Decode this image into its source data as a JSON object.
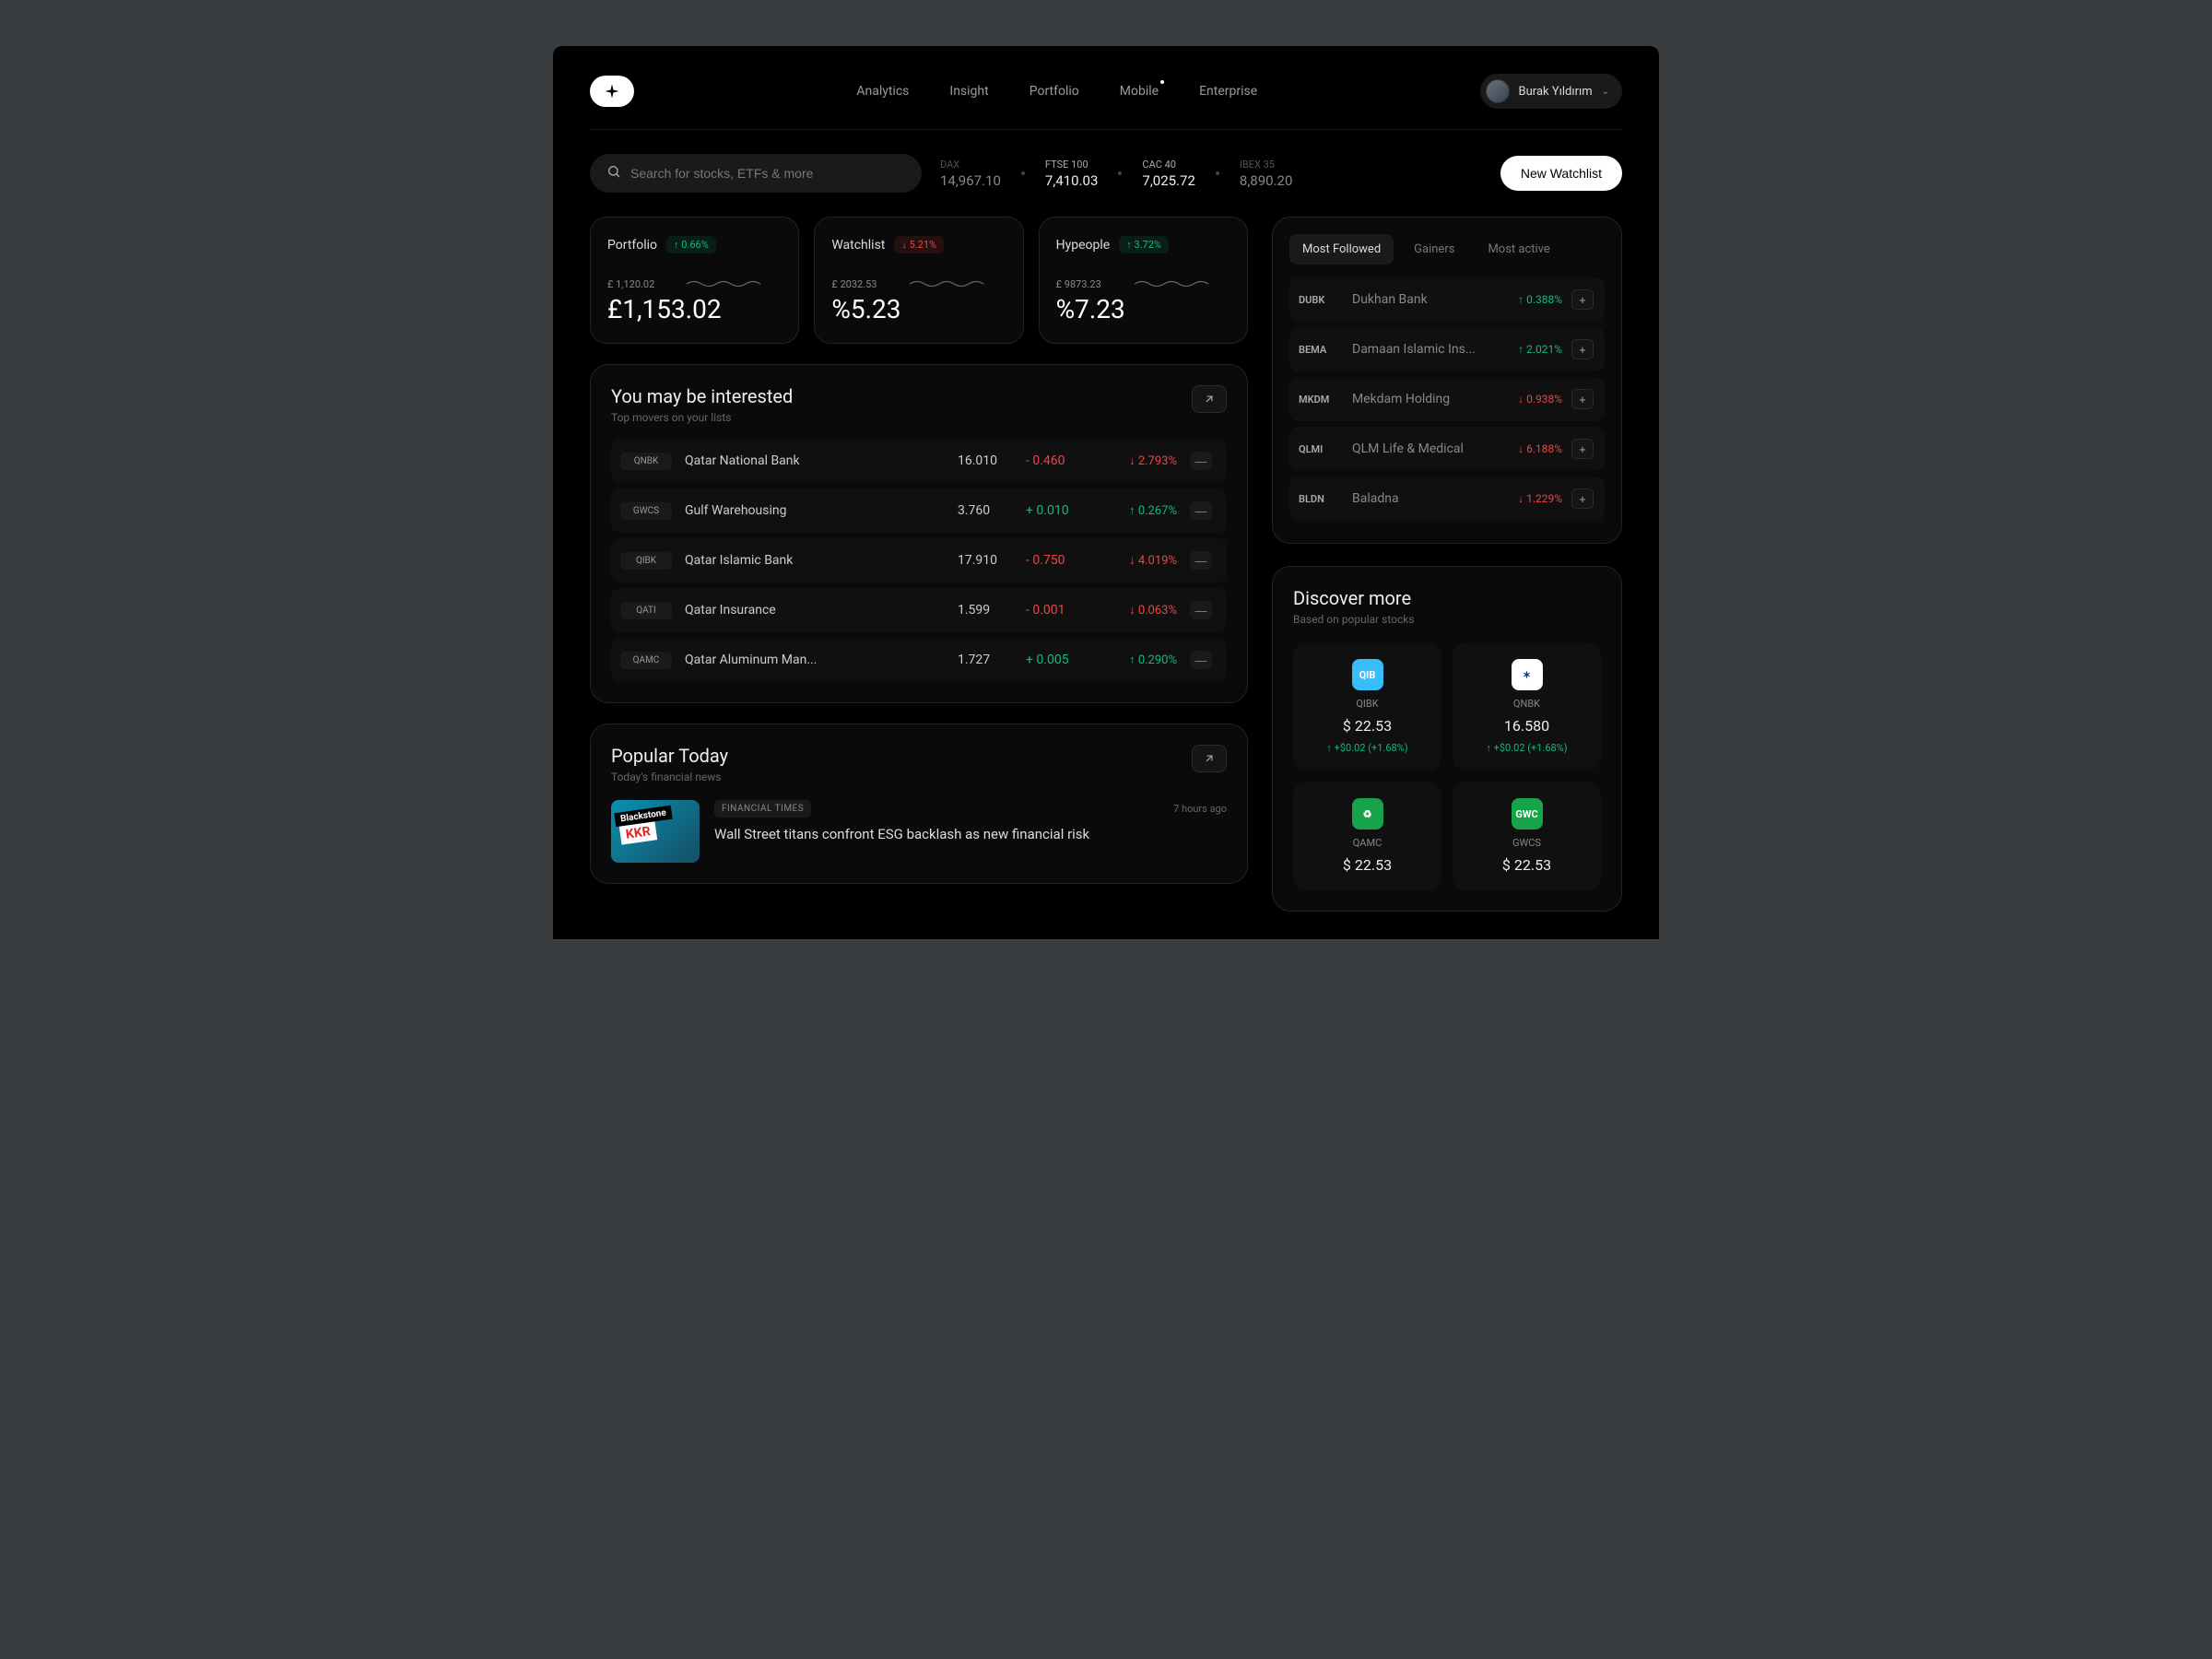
{
  "nav": {
    "items": [
      "Analytics",
      "Insight",
      "Portfolio",
      "Mobile",
      "Enterprise"
    ],
    "dot_index": 3
  },
  "user": {
    "name": "Burak Yıldırım"
  },
  "search": {
    "placeholder": "Search for stocks, ETFs & more"
  },
  "indices": [
    {
      "label": "DAX",
      "value": "14,967.10",
      "active": false
    },
    {
      "label": "FTSE 100",
      "value": "7,410.03",
      "active": true
    },
    {
      "label": "CAC 40",
      "value": "7,025.72",
      "active": true
    },
    {
      "label": "IBEX 35",
      "value": "8,890.20",
      "active": false
    }
  ],
  "new_watchlist_label": "New Watchlist",
  "stat_cards": [
    {
      "title": "Portfolio",
      "badge": "0.66%",
      "direction": "up",
      "small": "£ 1,120.02",
      "big": "£1,153.02"
    },
    {
      "title": "Watchlist",
      "badge": "5.21%",
      "direction": "down",
      "small": "£ 2032.53",
      "big": "%5.23"
    },
    {
      "title": "Hypeople",
      "badge": "3.72%",
      "direction": "up",
      "small": "£ 9873.23",
      "big": "%7.23"
    }
  ],
  "interested": {
    "title": "You may be interested",
    "subtitle": "Top movers on your lists",
    "rows": [
      {
        "ticker": "QNBK",
        "name": "Qatar National Bank",
        "price": "16.010",
        "delta": "- 0.460",
        "pct": "2.793%",
        "direction": "down"
      },
      {
        "ticker": "GWCS",
        "name": "Gulf Warehousing",
        "price": "3.760",
        "delta": "+ 0.010",
        "pct": "0.267%",
        "direction": "up"
      },
      {
        "ticker": "QIBK",
        "name": "Qatar Islamic Bank",
        "price": "17.910",
        "delta": "- 0.750",
        "pct": "4.019%",
        "direction": "down"
      },
      {
        "ticker": "QATI",
        "name": "Qatar Insurance",
        "price": "1.599",
        "delta": "- 0.001",
        "pct": "0.063%",
        "direction": "down"
      },
      {
        "ticker": "QAMC",
        "name": "Qatar Aluminum Man...",
        "price": "1.727",
        "delta": "+ 0.005",
        "pct": "0.290%",
        "direction": "up"
      }
    ]
  },
  "popular": {
    "title": "Popular Today",
    "subtitle": "Today's financial news",
    "article": {
      "source": "FINANCIAL TIMES",
      "time": "7 hours ago",
      "headline": "Wall Street titans confront ESG backlash as new financial risk",
      "thumb_text1": "Blackstone",
      "thumb_text2": "KKR"
    }
  },
  "followed": {
    "tabs": [
      "Most Followed",
      "Gainers",
      "Most active"
    ],
    "active_tab": 0,
    "rows": [
      {
        "ticker": "DUBK",
        "name": "Dukhan Bank",
        "pct": "0.388%",
        "direction": "up"
      },
      {
        "ticker": "BEMA",
        "name": "Damaan Islamic Ins...",
        "pct": "2.021%",
        "direction": "up"
      },
      {
        "ticker": "MKDM",
        "name": "Mekdam Holding",
        "pct": "0.938%",
        "direction": "down"
      },
      {
        "ticker": "QLMI",
        "name": "QLM Life & Medical",
        "pct": "6.188%",
        "direction": "down"
      },
      {
        "ticker": "BLDN",
        "name": "Baladna",
        "pct": "1.229%",
        "direction": "down"
      }
    ]
  },
  "discover": {
    "title": "Discover more",
    "subtitle": "Based on popular stocks",
    "cards": [
      {
        "ticker": "QIBK",
        "price": "$ 22.53",
        "change": "↑ +$0.02 (+1.68%)",
        "direction": "up",
        "logo_bg": "#38bdf8",
        "logo_text": "QIB",
        "logo_color": "#ffffff"
      },
      {
        "ticker": "QNBK",
        "price": "16.580",
        "change": "↑ +$0.02 (+1.68%)",
        "direction": "up",
        "logo_bg": "#ffffff",
        "logo_text": "✶",
        "logo_color": "#1e3a8a"
      },
      {
        "ticker": "QAMC",
        "price": "$ 22.53",
        "change": "",
        "direction": "up",
        "logo_bg": "#16a34a",
        "logo_text": "♻",
        "logo_color": "#ffffff"
      },
      {
        "ticker": "GWCS",
        "price": "$ 22.53",
        "change": "",
        "direction": "up",
        "logo_bg": "#16a34a",
        "logo_text": "GWC",
        "logo_color": "#ffffff"
      }
    ]
  },
  "colors": {
    "pos": "#10b981",
    "neg": "#ef4444",
    "bg": "#000000",
    "panel_border": "#222222"
  }
}
